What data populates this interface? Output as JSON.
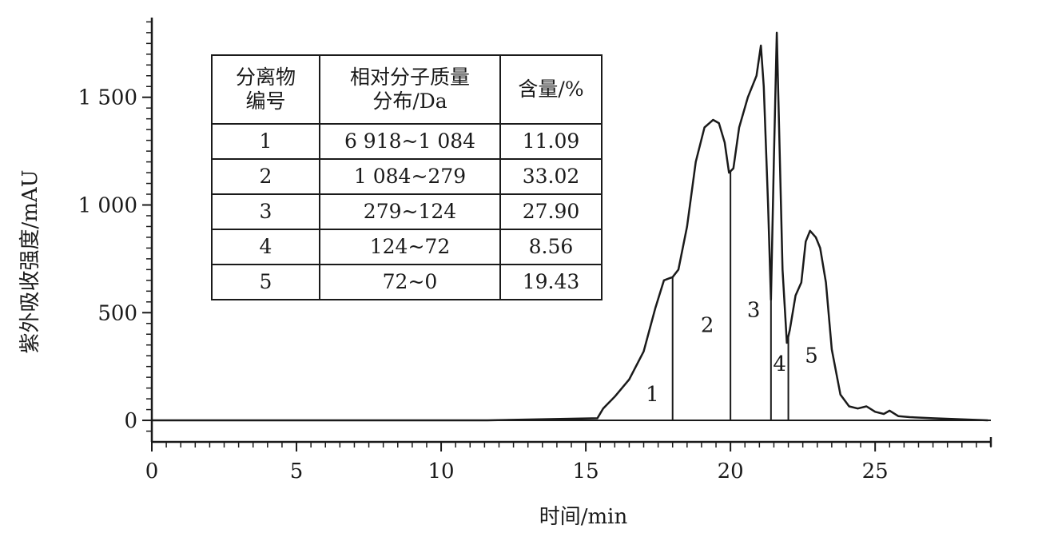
{
  "chart_data": {
    "type": "line",
    "xlabel": "时间/min",
    "ylabel": "紫外吸收强度/mAU",
    "xlim": [
      0,
      29
    ],
    "ylim": [
      -100,
      1870
    ],
    "x_ticks": [
      0,
      5,
      10,
      15,
      20,
      25
    ],
    "x_tick_labels": [
      "0",
      "5",
      "10",
      "15",
      "20",
      "25"
    ],
    "y_ticks": [
      0,
      500,
      1000,
      1500
    ],
    "y_tick_labels": [
      "0",
      "500",
      "1 000",
      "1 500"
    ],
    "grid": false,
    "series": [
      {
        "x": [
          0,
          11.6,
          15.4,
          15.6,
          16.0,
          16.5,
          17.0,
          17.4,
          17.7,
          17.9,
          18.0,
          18.2,
          18.5,
          18.8,
          19.1,
          19.4,
          19.6,
          19.8,
          19.95,
          20.1,
          20.3,
          20.6,
          20.9,
          21.05,
          21.15,
          21.3,
          21.4,
          21.5,
          21.6,
          21.7,
          21.8,
          21.95,
          22.05,
          22.25,
          22.45,
          22.6,
          22.75,
          22.95,
          23.1,
          23.3,
          23.5,
          23.8,
          24.1,
          24.4,
          24.7,
          25.0,
          25.3,
          25.5,
          25.8,
          26.2,
          27.0,
          28.0,
          28.9
        ],
        "y": [
          0,
          0,
          10,
          55,
          110,
          190,
          320,
          520,
          650,
          660,
          665,
          700,
          900,
          1200,
          1360,
          1395,
          1380,
          1290,
          1150,
          1170,
          1360,
          1500,
          1600,
          1740,
          1550,
          1000,
          560,
          1200,
          1800,
          1250,
          700,
          360,
          420,
          580,
          640,
          830,
          880,
          850,
          800,
          640,
          330,
          120,
          65,
          55,
          65,
          40,
          30,
          45,
          20,
          15,
          10,
          5,
          0
        ]
      }
    ],
    "fraction_boundaries": [
      18.0,
      20.0,
      21.4,
      22.0
    ],
    "peak_labels": [
      {
        "text": "1",
        "x": 17.3,
        "y": 90
      },
      {
        "text": "2",
        "x": 19.2,
        "y": 410
      },
      {
        "text": "3",
        "x": 20.8,
        "y": 480
      },
      {
        "text": "4",
        "x": 21.7,
        "y": 230
      },
      {
        "text": "5",
        "x": 22.8,
        "y": 270
      }
    ]
  },
  "table": {
    "headers": [
      "分离物\n编号",
      "相对分子质量\n分布/Da",
      "含量/%"
    ],
    "rows": [
      [
        "1",
        "6 918~1 084",
        "11.09"
      ],
      [
        "2",
        "1 084~279",
        "33.02"
      ],
      [
        "3",
        "279~124",
        "27.90"
      ],
      [
        "4",
        "124~72",
        "8.56"
      ],
      [
        "5",
        "72~0",
        "19.43"
      ]
    ]
  }
}
